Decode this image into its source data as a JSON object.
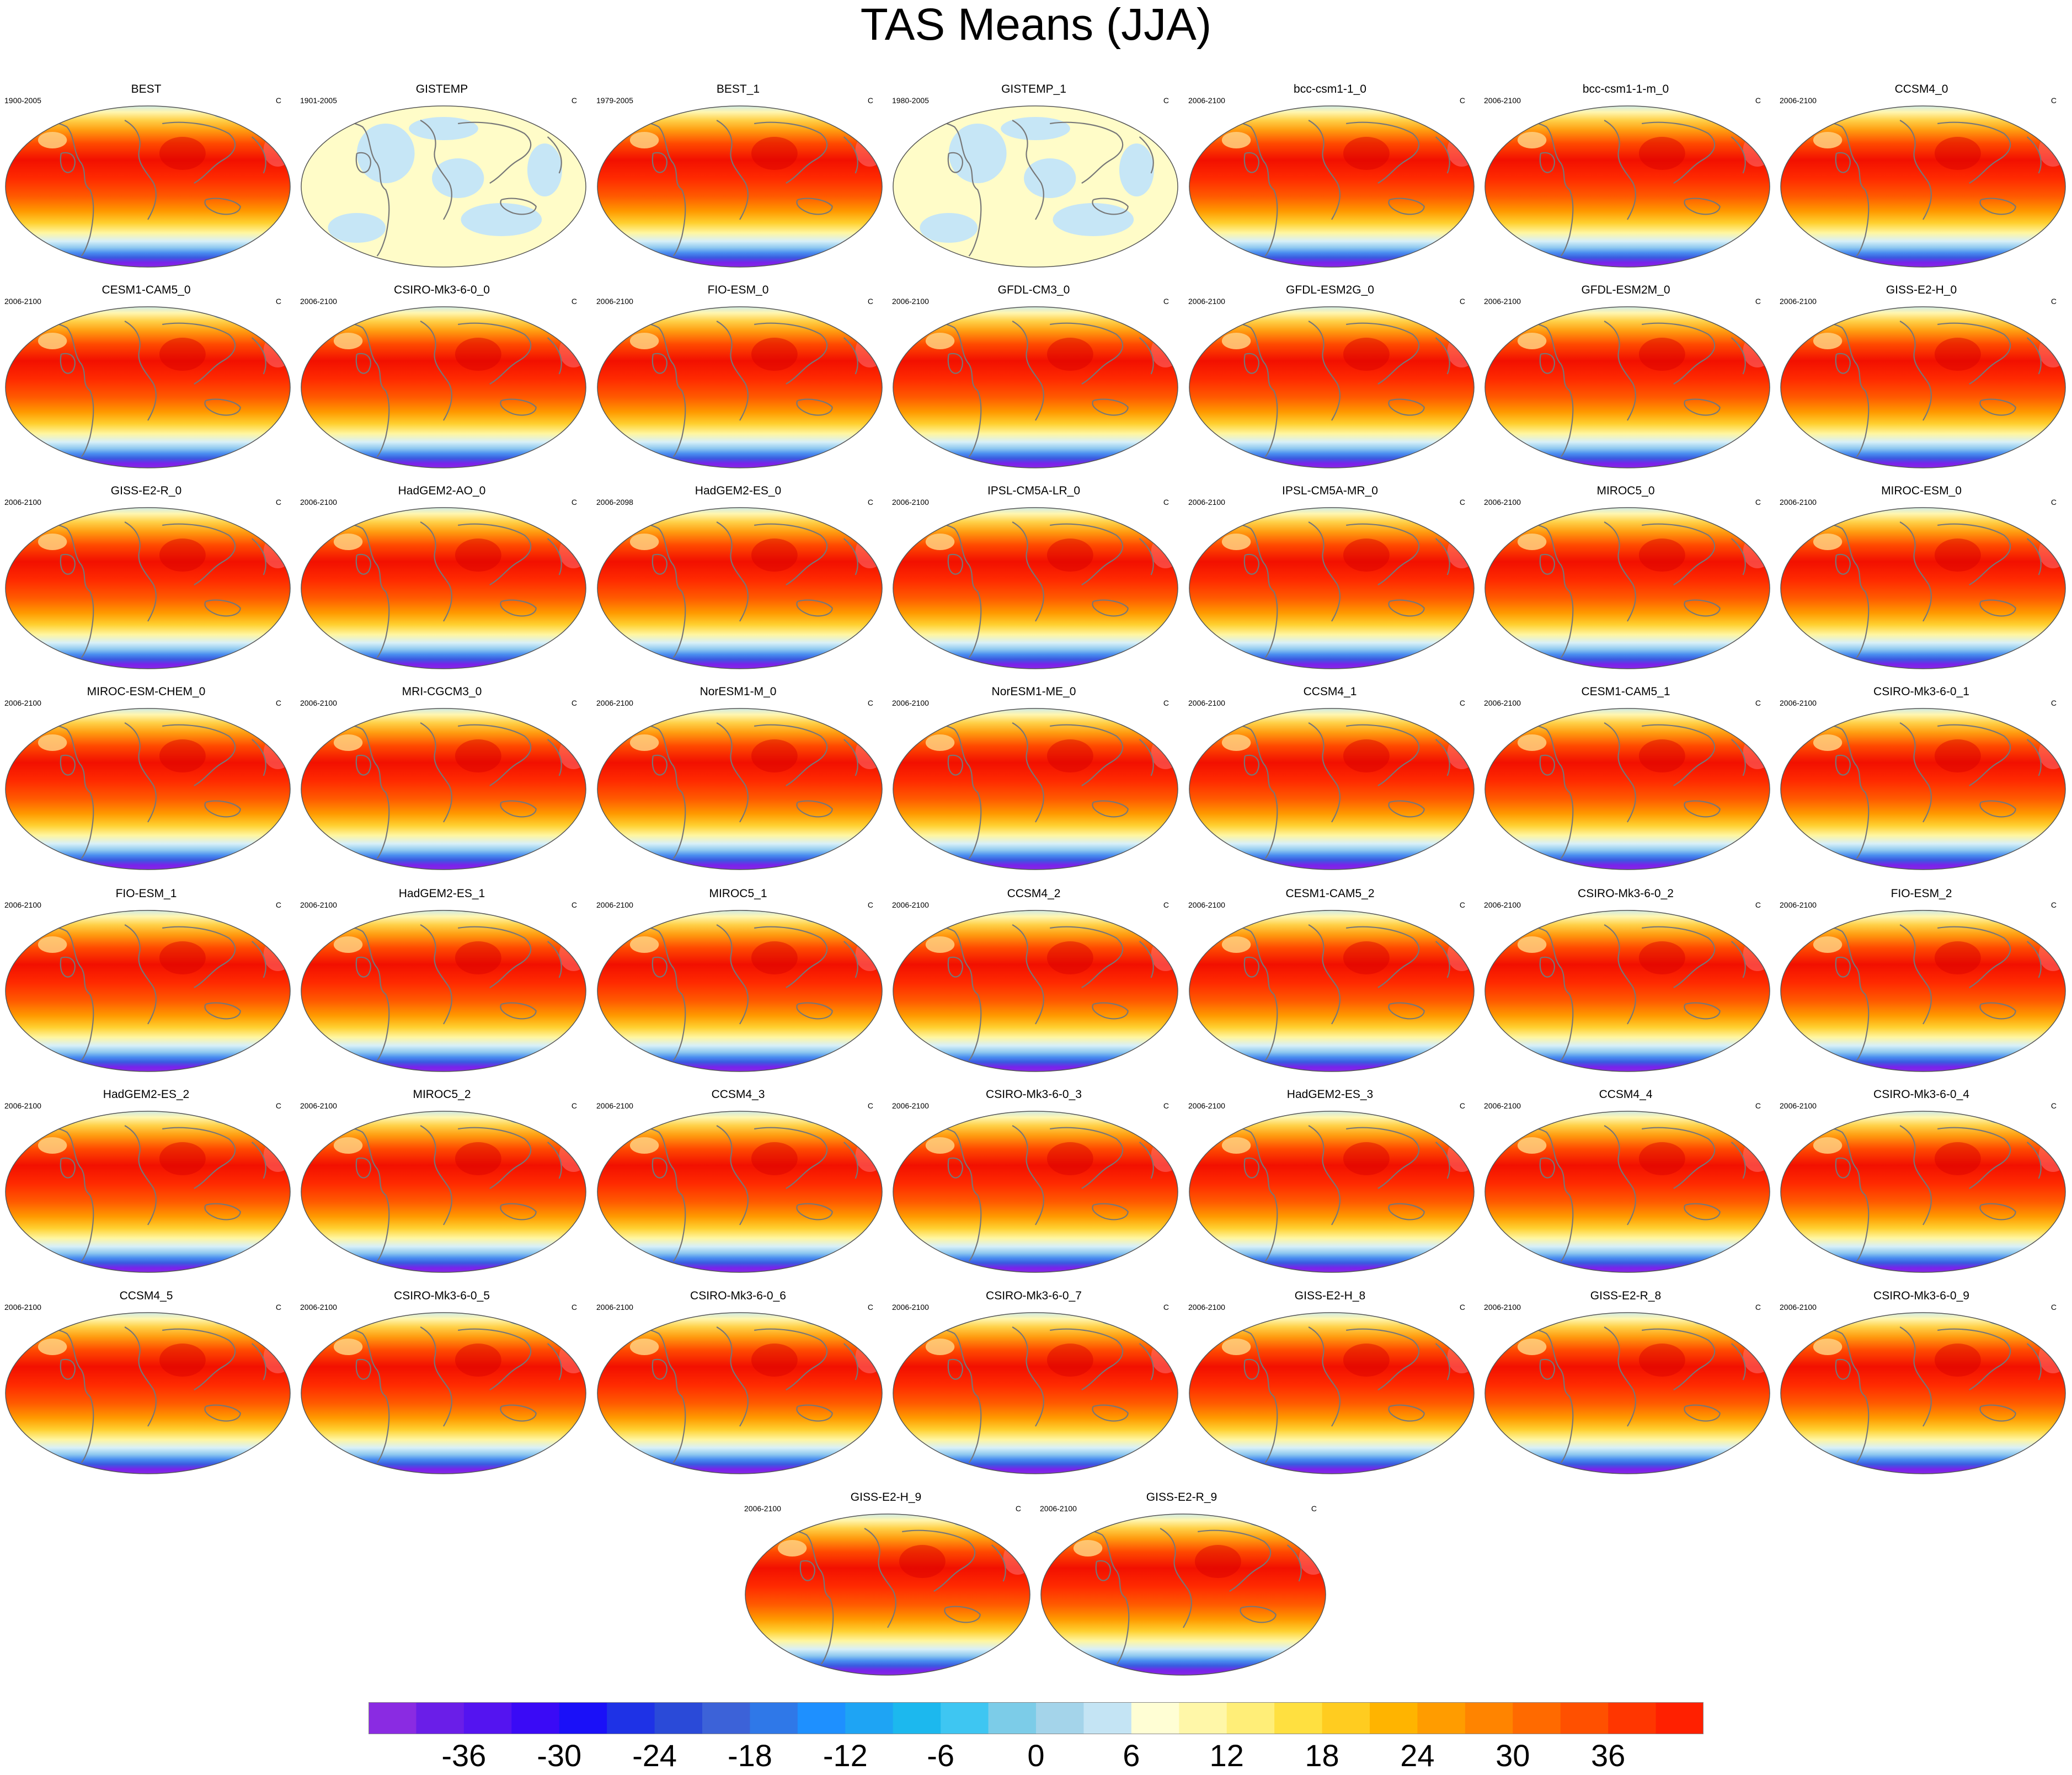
{
  "title": "TAS Means (JJA)",
  "chart_data": {
    "type": "heatmap",
    "title": "TAS Means (JJA)",
    "variable_units": "C",
    "panels": [
      {
        "name": "BEST",
        "years": "1900-2005",
        "units": "C",
        "fill": "full"
      },
      {
        "name": "GISTEMP",
        "years": "1901-2005",
        "units": "C",
        "fill": "anomaly"
      },
      {
        "name": "BEST_1",
        "years": "1979-2005",
        "units": "C",
        "fill": "full"
      },
      {
        "name": "GISTEMP_1",
        "years": "1980-2005",
        "units": "C",
        "fill": "anomaly"
      },
      {
        "name": "bcc-csm1-1_0",
        "years": "2006-2100",
        "units": "C",
        "fill": "full"
      },
      {
        "name": "bcc-csm1-1-m_0",
        "years": "2006-2100",
        "units": "C",
        "fill": "full"
      },
      {
        "name": "CCSM4_0",
        "years": "2006-2100",
        "units": "C",
        "fill": "full"
      },
      {
        "name": "CESM1-CAM5_0",
        "years": "2006-2100",
        "units": "C",
        "fill": "full"
      },
      {
        "name": "CSIRO-Mk3-6-0_0",
        "years": "2006-2100",
        "units": "C",
        "fill": "full"
      },
      {
        "name": "FIO-ESM_0",
        "years": "2006-2100",
        "units": "C",
        "fill": "full"
      },
      {
        "name": "GFDL-CM3_0",
        "years": "2006-2100",
        "units": "C",
        "fill": "full"
      },
      {
        "name": "GFDL-ESM2G_0",
        "years": "2006-2100",
        "units": "C",
        "fill": "full"
      },
      {
        "name": "GFDL-ESM2M_0",
        "years": "2006-2100",
        "units": "C",
        "fill": "full"
      },
      {
        "name": "GISS-E2-H_0",
        "years": "2006-2100",
        "units": "C",
        "fill": "full"
      },
      {
        "name": "GISS-E2-R_0",
        "years": "2006-2100",
        "units": "C",
        "fill": "full"
      },
      {
        "name": "HadGEM2-AO_0",
        "years": "2006-2100",
        "units": "C",
        "fill": "full"
      },
      {
        "name": "HadGEM2-ES_0",
        "years": "2006-2098",
        "units": "C",
        "fill": "full"
      },
      {
        "name": "IPSL-CM5A-LR_0",
        "years": "2006-2100",
        "units": "C",
        "fill": "full"
      },
      {
        "name": "IPSL-CM5A-MR_0",
        "years": "2006-2100",
        "units": "C",
        "fill": "full"
      },
      {
        "name": "MIROC5_0",
        "years": "2006-2100",
        "units": "C",
        "fill": "full"
      },
      {
        "name": "MIROC-ESM_0",
        "years": "2006-2100",
        "units": "C",
        "fill": "full"
      },
      {
        "name": "MIROC-ESM-CHEM_0",
        "years": "2006-2100",
        "units": "C",
        "fill": "full"
      },
      {
        "name": "MRI-CGCM3_0",
        "years": "2006-2100",
        "units": "C",
        "fill": "full"
      },
      {
        "name": "NorESM1-M_0",
        "years": "2006-2100",
        "units": "C",
        "fill": "full"
      },
      {
        "name": "NorESM1-ME_0",
        "years": "2006-2100",
        "units": "C",
        "fill": "full"
      },
      {
        "name": "CCSM4_1",
        "years": "2006-2100",
        "units": "C",
        "fill": "full"
      },
      {
        "name": "CESM1-CAM5_1",
        "years": "2006-2100",
        "units": "C",
        "fill": "full"
      },
      {
        "name": "CSIRO-Mk3-6-0_1",
        "years": "2006-2100",
        "units": "C",
        "fill": "full"
      },
      {
        "name": "FIO-ESM_1",
        "years": "2006-2100",
        "units": "C",
        "fill": "full"
      },
      {
        "name": "HadGEM2-ES_1",
        "years": "2006-2100",
        "units": "C",
        "fill": "full"
      },
      {
        "name": "MIROC5_1",
        "years": "2006-2100",
        "units": "C",
        "fill": "full"
      },
      {
        "name": "CCSM4_2",
        "years": "2006-2100",
        "units": "C",
        "fill": "full"
      },
      {
        "name": "CESM1-CAM5_2",
        "years": "2006-2100",
        "units": "C",
        "fill": "full"
      },
      {
        "name": "CSIRO-Mk3-6-0_2",
        "years": "2006-2100",
        "units": "C",
        "fill": "full"
      },
      {
        "name": "FIO-ESM_2",
        "years": "2006-2100",
        "units": "C",
        "fill": "full"
      },
      {
        "name": "HadGEM2-ES_2",
        "years": "2006-2100",
        "units": "C",
        "fill": "full"
      },
      {
        "name": "MIROC5_2",
        "years": "2006-2100",
        "units": "C",
        "fill": "full"
      },
      {
        "name": "CCSM4_3",
        "years": "2006-2100",
        "units": "C",
        "fill": "full"
      },
      {
        "name": "CSIRO-Mk3-6-0_3",
        "years": "2006-2100",
        "units": "C",
        "fill": "full"
      },
      {
        "name": "HadGEM2-ES_3",
        "years": "2006-2100",
        "units": "C",
        "fill": "full"
      },
      {
        "name": "CCSM4_4",
        "years": "2006-2100",
        "units": "C",
        "fill": "full"
      },
      {
        "name": "CSIRO-Mk3-6-0_4",
        "years": "2006-2100",
        "units": "C",
        "fill": "full"
      },
      {
        "name": "CCSM4_5",
        "years": "2006-2100",
        "units": "C",
        "fill": "full"
      },
      {
        "name": "CSIRO-Mk3-6-0_5",
        "years": "2006-2100",
        "units": "C",
        "fill": "full"
      },
      {
        "name": "CSIRO-Mk3-6-0_6",
        "years": "2006-2100",
        "units": "C",
        "fill": "full"
      },
      {
        "name": "CSIRO-Mk3-6-0_7",
        "years": "2006-2100",
        "units": "C",
        "fill": "full"
      },
      {
        "name": "GISS-E2-H_8",
        "years": "2006-2100",
        "units": "C",
        "fill": "full"
      },
      {
        "name": "GISS-E2-R_8",
        "years": "2006-2100",
        "units": "C",
        "fill": "full"
      },
      {
        "name": "CSIRO-Mk3-6-0_9",
        "years": "2006-2100",
        "units": "C",
        "fill": "full"
      },
      {
        "name": "GISS-E2-H_9",
        "years": "2006-2100",
        "units": "C",
        "fill": "full"
      },
      {
        "name": "GISS-E2-R_9",
        "years": "2006-2100",
        "units": "C",
        "fill": "full"
      }
    ],
    "colorbar": {
      "range": [
        -42,
        42
      ],
      "step": 3,
      "tick_values": [
        -36,
        -30,
        -24,
        -18,
        -12,
        -6,
        0,
        6,
        12,
        18,
        24,
        30,
        36
      ],
      "tick_labels": [
        "-36",
        "-30",
        "-24",
        "-18",
        "-12",
        "-6",
        "0",
        "6",
        "12",
        "18",
        "24",
        "30",
        "36"
      ],
      "colors": [
        "#8a2be2",
        "#6a1ee8",
        "#5414f0",
        "#3a0af6",
        "#1a10f8",
        "#1e32e6",
        "#2a4ad8",
        "#3c62d8",
        "#2f78e8",
        "#1e90ff",
        "#1ea4f4",
        "#1cb8ee",
        "#3ec6f2",
        "#7ccce8",
        "#a4d4ea",
        "#c4e4f4",
        "#fffed4",
        "#fff7a8",
        "#ffee78",
        "#ffe040",
        "#ffcc20",
        "#ffb400",
        "#ff9c00",
        "#ff8400",
        "#ff6a00",
        "#ff5000",
        "#ff3600",
        "#ff2000",
        "#f60c00",
        "#e00000",
        "#cc0000",
        "#d83a3a",
        "#ee7a7a",
        "#ffb4b4"
      ]
    }
  }
}
